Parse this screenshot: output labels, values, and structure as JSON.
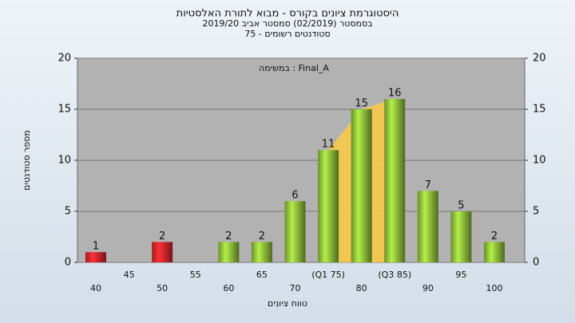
{
  "chart_data": {
    "type": "bar",
    "title": "היסטוגרמת ציונים בקורס - מבוא לתורת האלסטיות",
    "subtitle": "בסמסטר  (02/2019)  סמסטר אביב 2019/20",
    "subtitle2": "סטודנטים רשומים - 75",
    "annotation": "במשימה : Final_A",
    "x_label": "טווח ציונים",
    "y_label": "מספר סטודנטים",
    "categories": [
      "40",
      "45",
      "50",
      "55",
      "60",
      "65",
      "70",
      "(Q1 75)",
      "80",
      "(Q3 85)",
      "90",
      "95",
      "100"
    ],
    "values": [
      1,
      null,
      2,
      null,
      2,
      2,
      6,
      11,
      15,
      16,
      7,
      5,
      2
    ],
    "colors": [
      "#d9262b",
      null,
      "#d9262b",
      null,
      "#8fbf3a",
      "#8fbf3a",
      "#8fbf3a",
      "#8fbf3a",
      "#8fbf3a",
      "#8fbf3a",
      "#8fbf3a",
      "#8fbf3a",
      "#8fbf3a"
    ],
    "highlight_color": "#f7c948",
    "ylim": [
      0,
      20
    ],
    "yticks": [
      0,
      5,
      10,
      15,
      20
    ],
    "grid": true
  }
}
